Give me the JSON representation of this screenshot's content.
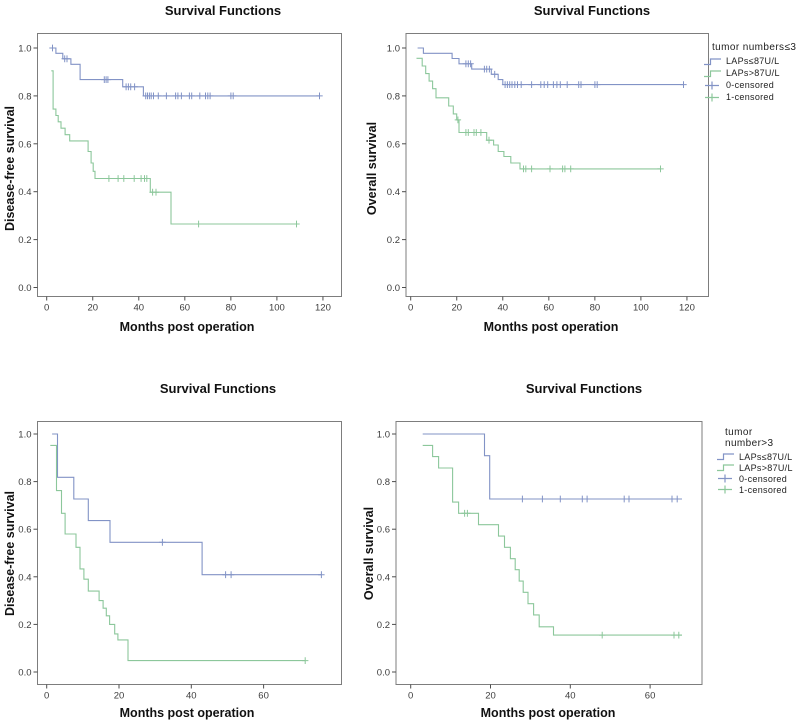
{
  "colors": {
    "series_blue": "#8293c6",
    "series_green": "#8cc79b",
    "frame": "#7d7d7d",
    "tick": "#4d4d4d",
    "tick_label": "#3d3d3d"
  },
  "legend_top": {
    "title": "tumor numbers≤3",
    "items": [
      {
        "label": "LAPs≤87U/L",
        "color_key": "blue",
        "glyph": "step"
      },
      {
        "label": "LAPs>87U/L",
        "color_key": "green",
        "glyph": "step"
      },
      {
        "label": "0-censored",
        "color_key": "blue",
        "glyph": "plus"
      },
      {
        "label": "1-censored",
        "color_key": "green",
        "glyph": "plus"
      }
    ]
  },
  "legend_bottom": {
    "title": "tumor number>3",
    "items": [
      {
        "label": "LAPs≤87U/L",
        "color_key": "blue",
        "glyph": "step"
      },
      {
        "label": "LAPs>87U/L",
        "color_key": "green",
        "glyph": "step"
      },
      {
        "label": "0-censored",
        "color_key": "blue",
        "glyph": "plus"
      },
      {
        "label": "1-censored",
        "color_key": "green",
        "glyph": "plus"
      }
    ]
  },
  "chart_data": [
    {
      "id": "tl",
      "type": "line",
      "subtype": "kaplan-meier-step",
      "title": "Survival Functions",
      "xlabel": "Months post operation",
      "ylabel": "Disease-free survival",
      "group": "tumor numbers≤3",
      "xticks": [
        0,
        20,
        40,
        60,
        80,
        100,
        120
      ],
      "yticks": [
        0,
        0.2,
        0.4,
        0.6,
        0.8,
        1
      ],
      "xlim": [
        0,
        128
      ],
      "ylim": [
        0,
        1.05
      ],
      "series": [
        {
          "name": "LAPs≤87U/L",
          "color_key": "blue",
          "steps": [
            [
              1.5,
              1.0
            ],
            [
              4,
              0.978
            ],
            [
              7,
              0.955
            ],
            [
              10.5,
              0.932
            ],
            [
              14.5,
              0.868
            ],
            [
              33,
              0.838
            ],
            [
              42,
              0.8
            ],
            [
              118.5,
              0.8
            ]
          ],
          "censors": [
            [
              2.5,
              1.0
            ],
            [
              7.8,
              0.955
            ],
            [
              8.8,
              0.955
            ],
            [
              25,
              0.868
            ],
            [
              25.8,
              0.868
            ],
            [
              26.6,
              0.868
            ],
            [
              34.5,
              0.838
            ],
            [
              35.5,
              0.838
            ],
            [
              36.5,
              0.838
            ],
            [
              38.2,
              0.838
            ],
            [
              43,
              0.8
            ],
            [
              43.8,
              0.8
            ],
            [
              44.6,
              0.8
            ],
            [
              45.4,
              0.8
            ],
            [
              46.4,
              0.8
            ],
            [
              48.5,
              0.8
            ],
            [
              52,
              0.8
            ],
            [
              56,
              0.8
            ],
            [
              57,
              0.8
            ],
            [
              58.5,
              0.8
            ],
            [
              62,
              0.8
            ],
            [
              63,
              0.8
            ],
            [
              66.5,
              0.8
            ],
            [
              69,
              0.8
            ],
            [
              70,
              0.8
            ],
            [
              71,
              0.8
            ],
            [
              80,
              0.8
            ],
            [
              81,
              0.8
            ],
            [
              118.5,
              0.8
            ]
          ]
        },
        {
          "name": "LAPs>87U/L",
          "color_key": "green",
          "steps": [
            [
              2,
              0.905
            ],
            [
              2.8,
              0.745
            ],
            [
              4,
              0.718
            ],
            [
              5,
              0.692
            ],
            [
              6.2,
              0.665
            ],
            [
              8,
              0.638
            ],
            [
              10,
              0.612
            ],
            [
              18,
              0.568
            ],
            [
              19.3,
              0.52
            ],
            [
              20.2,
              0.485
            ],
            [
              21,
              0.455
            ],
            [
              45,
              0.398
            ],
            [
              54,
              0.265
            ],
            [
              108.5,
              0.265
            ]
          ],
          "censors": [
            [
              27,
              0.455
            ],
            [
              31,
              0.455
            ],
            [
              33.5,
              0.455
            ],
            [
              38,
              0.455
            ],
            [
              41,
              0.455
            ],
            [
              42.5,
              0.455
            ],
            [
              43.5,
              0.455
            ],
            [
              46,
              0.398
            ],
            [
              47.5,
              0.398
            ],
            [
              66,
              0.265
            ],
            [
              108.5,
              0.265
            ]
          ]
        }
      ]
    },
    {
      "id": "tr",
      "type": "line",
      "subtype": "kaplan-meier-step",
      "title": "Survival Functions",
      "xlabel": "Months post operation",
      "ylabel": "Overall survival",
      "group": "tumor numbers≤3",
      "xticks": [
        0,
        20,
        40,
        60,
        80,
        100,
        120
      ],
      "yticks": [
        0,
        0.2,
        0.4,
        0.6,
        0.8,
        1
      ],
      "xlim": [
        0,
        128
      ],
      "ylim": [
        0,
        1.05
      ],
      "series": [
        {
          "name": "LAPs≤87U/L",
          "color_key": "blue",
          "steps": [
            [
              3,
              1.0
            ],
            [
              5.5,
              0.978
            ],
            [
              18,
              0.956
            ],
            [
              21,
              0.934
            ],
            [
              26.5,
              0.912
            ],
            [
              35,
              0.89
            ],
            [
              38,
              0.868
            ],
            [
              40,
              0.847
            ],
            [
              118.5,
              0.847
            ]
          ],
          "censors": [
            [
              24,
              0.934
            ],
            [
              25,
              0.934
            ],
            [
              26,
              0.934
            ],
            [
              32,
              0.912
            ],
            [
              33,
              0.912
            ],
            [
              34.2,
              0.912
            ],
            [
              36.5,
              0.89
            ],
            [
              41,
              0.847
            ],
            [
              42,
              0.847
            ],
            [
              43,
              0.847
            ],
            [
              44,
              0.847
            ],
            [
              45.2,
              0.847
            ],
            [
              46.4,
              0.847
            ],
            [
              48,
              0.847
            ],
            [
              52.5,
              0.847
            ],
            [
              56.5,
              0.847
            ],
            [
              58,
              0.847
            ],
            [
              59.5,
              0.847
            ],
            [
              62,
              0.847
            ],
            [
              63.5,
              0.847
            ],
            [
              65,
              0.847
            ],
            [
              68,
              0.847
            ],
            [
              73,
              0.847
            ],
            [
              74,
              0.847
            ],
            [
              80,
              0.847
            ],
            [
              81,
              0.847
            ],
            [
              118.5,
              0.847
            ]
          ]
        },
        {
          "name": "LAPs>87U/L",
          "color_key": "green",
          "steps": [
            [
              2.5,
              0.957
            ],
            [
              5,
              0.925
            ],
            [
              6.5,
              0.893
            ],
            [
              8,
              0.862
            ],
            [
              9.5,
              0.83
            ],
            [
              11,
              0.792
            ],
            [
              16.5,
              0.758
            ],
            [
              18.5,
              0.725
            ],
            [
              20,
              0.7
            ],
            [
              21,
              0.647
            ],
            [
              33,
              0.615
            ],
            [
              36,
              0.595
            ],
            [
              38,
              0.568
            ],
            [
              40.5,
              0.547
            ],
            [
              43.5,
              0.52
            ],
            [
              47.5,
              0.495
            ],
            [
              108.5,
              0.495
            ]
          ],
          "censors": [
            [
              20.5,
              0.7
            ],
            [
              24,
              0.647
            ],
            [
              25,
              0.647
            ],
            [
              27.5,
              0.647
            ],
            [
              28.5,
              0.647
            ],
            [
              30.5,
              0.647
            ],
            [
              34,
              0.615
            ],
            [
              49,
              0.495
            ],
            [
              50,
              0.495
            ],
            [
              52.5,
              0.495
            ],
            [
              60.5,
              0.495
            ],
            [
              66,
              0.495
            ],
            [
              67,
              0.495
            ],
            [
              69.5,
              0.495
            ],
            [
              108.5,
              0.495
            ]
          ]
        }
      ]
    },
    {
      "id": "bl",
      "type": "line",
      "subtype": "kaplan-meier-step",
      "title": "Survival Functions",
      "xlabel": "Months post operation",
      "ylabel": "Disease-free survival",
      "group": "tumor number>3",
      "xticks": [
        0,
        20,
        40,
        60
      ],
      "yticks": [
        0,
        0.2,
        0.4,
        0.6,
        0.8,
        1
      ],
      "xlim": [
        0,
        81
      ],
      "ylim": [
        0,
        1.05
      ],
      "series": [
        {
          "name": "LAPs≤87U/L",
          "color_key": "blue",
          "steps": [
            [
              1.5,
              1.0
            ],
            [
              3,
              0.818
            ],
            [
              7.5,
              0.727
            ],
            [
              11.5,
              0.636
            ],
            [
              17.5,
              0.545
            ],
            [
              43,
              0.409
            ],
            [
              76,
              0.409
            ]
          ],
          "censors": [
            [
              32,
              0.545
            ],
            [
              49.5,
              0.409
            ],
            [
              51,
              0.409
            ],
            [
              76,
              0.409
            ]
          ]
        },
        {
          "name": "LAPs>87U/L",
          "color_key": "green",
          "steps": [
            [
              1,
              0.952
            ],
            [
              2.7,
              0.762
            ],
            [
              4.1,
              0.667
            ],
            [
              5.1,
              0.58
            ],
            [
              8.1,
              0.524
            ],
            [
              9.2,
              0.433
            ],
            [
              10.3,
              0.39
            ],
            [
              11.5,
              0.34
            ],
            [
              14.5,
              0.3
            ],
            [
              15.6,
              0.268
            ],
            [
              16.5,
              0.236
            ],
            [
              17.4,
              0.2
            ],
            [
              18.8,
              0.16
            ],
            [
              19.7,
              0.135
            ],
            [
              22.5,
              0.048
            ],
            [
              71.5,
              0.048
            ]
          ],
          "censors": [
            [
              71.5,
              0.048
            ]
          ]
        }
      ]
    },
    {
      "id": "br",
      "type": "line",
      "subtype": "kaplan-meier-step",
      "title": "Survival Functions",
      "xlabel": "Months post operation",
      "ylabel": "Overall survival",
      "group": "tumor number>3",
      "xticks": [
        0,
        20,
        40,
        60
      ],
      "yticks": [
        0,
        0.2,
        0.4,
        0.6,
        0.8,
        1
      ],
      "xlim": [
        0,
        73
      ],
      "ylim": [
        0,
        1.05
      ],
      "series": [
        {
          "name": "LAPs≤87U/L",
          "color_key": "blue",
          "steps": [
            [
              3,
              1.0
            ],
            [
              18.5,
              0.909
            ],
            [
              19.8,
              0.727
            ],
            [
              68,
              0.727
            ]
          ],
          "censors": [
            [
              28,
              0.727
            ],
            [
              33,
              0.727
            ],
            [
              37.5,
              0.727
            ],
            [
              43,
              0.727
            ],
            [
              44.2,
              0.727
            ],
            [
              53.5,
              0.727
            ],
            [
              54.7,
              0.727
            ],
            [
              65.5,
              0.727
            ],
            [
              66.8,
              0.727
            ]
          ]
        },
        {
          "name": "LAPs>87U/L",
          "color_key": "green",
          "steps": [
            [
              3,
              0.952
            ],
            [
              5.5,
              0.905
            ],
            [
              7,
              0.857
            ],
            [
              10.5,
              0.714
            ],
            [
              12,
              0.667
            ],
            [
              17,
              0.619
            ],
            [
              22,
              0.571
            ],
            [
              23.5,
              0.524
            ],
            [
              25,
              0.476
            ],
            [
              26.2,
              0.43
            ],
            [
              27.2,
              0.382
            ],
            [
              28.2,
              0.335
            ],
            [
              29.4,
              0.287
            ],
            [
              30.8,
              0.24
            ],
            [
              32.2,
              0.19
            ],
            [
              35.8,
              0.155
            ],
            [
              68,
              0.155
            ]
          ],
          "censors": [
            [
              13.5,
              0.667
            ],
            [
              14.2,
              0.667
            ],
            [
              48,
              0.155
            ],
            [
              66,
              0.155
            ],
            [
              67.2,
              0.155
            ]
          ]
        }
      ]
    }
  ]
}
